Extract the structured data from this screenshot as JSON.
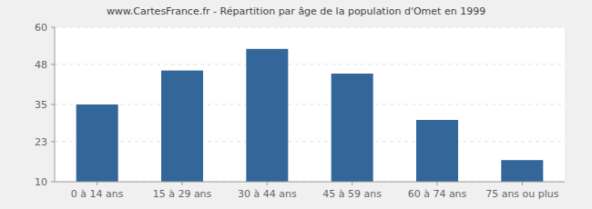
{
  "chart_data": {
    "type": "bar",
    "title": "www.CartesFrance.fr - Répartition par âge de la population d'Omet en 1999",
    "categories": [
      "0 à 14 ans",
      "15 à 29 ans",
      "30 à 44 ans",
      "45 à 59 ans",
      "60 à 74 ans",
      "75 ans ou plus"
    ],
    "values": [
      35,
      46,
      53,
      45,
      30,
      17
    ],
    "color": "#336699",
    "ylim": [
      10,
      60
    ],
    "yticks": [
      10,
      23,
      35,
      48,
      60
    ],
    "grid": true
  }
}
